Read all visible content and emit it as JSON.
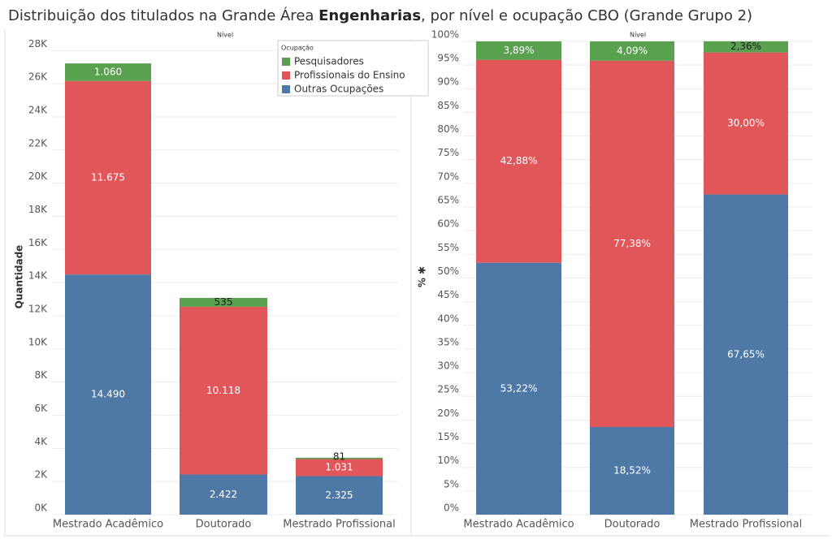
{
  "title": {
    "before": "Distribuição dos titulados na Grande Área ",
    "bold": "Engenharias",
    "after": ", por nível e ocupação CBO (Grande Grupo 2)"
  },
  "chart_data": [
    {
      "type": "bar",
      "stacked": true,
      "header": "Nível",
      "ylabel": "Quantidade",
      "categories": [
        "Mestrado Acadêmico",
        "Doutorado",
        "Mestrado Profissional"
      ],
      "series": [
        {
          "name": "Outras Ocupações",
          "color": "#4e79a7",
          "values": [
            14490,
            2422,
            2325
          ],
          "value_labels": [
            "14.490",
            "2.422",
            "2.325"
          ]
        },
        {
          "name": "Profissionais do Ensino",
          "color": "#e15759",
          "values": [
            11675,
            10118,
            1031
          ],
          "value_labels": [
            "11.675",
            "10.118",
            "1.031"
          ]
        },
        {
          "name": "Pesquisadores",
          "color": "#59a14f",
          "values": [
            1060,
            535,
            81
          ],
          "value_labels": [
            "1.060",
            "535",
            "81"
          ]
        }
      ],
      "ylim": [
        0,
        28700
      ],
      "yticks": [
        {
          "value": 0,
          "label": "0K"
        },
        {
          "value": 2000,
          "label": "2K"
        },
        {
          "value": 4000,
          "label": "4K"
        },
        {
          "value": 6000,
          "label": "6K"
        },
        {
          "value": 8000,
          "label": "8K"
        },
        {
          "value": 10000,
          "label": "10K"
        },
        {
          "value": 12000,
          "label": "12K"
        },
        {
          "value": 14000,
          "label": "14K"
        },
        {
          "value": 16000,
          "label": "16K"
        },
        {
          "value": 18000,
          "label": "18K"
        },
        {
          "value": 20000,
          "label": "20K"
        },
        {
          "value": 22000,
          "label": "22K"
        },
        {
          "value": 24000,
          "label": "24K"
        },
        {
          "value": 26000,
          "label": "26K"
        },
        {
          "value": 28000,
          "label": "28K"
        }
      ],
      "grid": true,
      "legend": "top-right",
      "legend_title": "Ocupação"
    },
    {
      "type": "bar",
      "stacked": true,
      "header": "Nível",
      "ylabel": "% ✱",
      "categories": [
        "Mestrado Acadêmico",
        "Doutorado",
        "Mestrado Profissional"
      ],
      "series": [
        {
          "color": "#4e79a7",
          "values": [
            53.22,
            18.52,
            67.65
          ],
          "value_labels": [
            "53,22%",
            "18,52%",
            "67,65%"
          ]
        },
        {
          "color": "#e15759",
          "values": [
            42.88,
            77.38,
            30.0
          ],
          "value_labels": [
            "42,88%",
            "77,38%",
            "30,00%"
          ]
        },
        {
          "color": "#59a14f",
          "values": [
            3.89,
            4.09,
            2.36
          ],
          "value_labels": [
            "3,89%",
            "4,09%",
            "2,36%"
          ]
        }
      ],
      "ylim": [
        0,
        100.5
      ],
      "yticks": [
        {
          "value": 0,
          "label": "0%"
        },
        {
          "value": 5,
          "label": "5%"
        },
        {
          "value": 10,
          "label": "10%"
        },
        {
          "value": 15,
          "label": "15%"
        },
        {
          "value": 20,
          "label": "20%"
        },
        {
          "value": 25,
          "label": "25%"
        },
        {
          "value": 30,
          "label": "30%"
        },
        {
          "value": 35,
          "label": "35%"
        },
        {
          "value": 40,
          "label": "40%"
        },
        {
          "value": 45,
          "label": "45%"
        },
        {
          "value": 50,
          "label": "50%"
        },
        {
          "value": 55,
          "label": "55%"
        },
        {
          "value": 60,
          "label": "60%"
        },
        {
          "value": 65,
          "label": "65%"
        },
        {
          "value": 70,
          "label": "70%"
        },
        {
          "value": 75,
          "label": "75%"
        },
        {
          "value": 80,
          "label": "80%"
        },
        {
          "value": 85,
          "label": "85%"
        },
        {
          "value": 90,
          "label": "90%"
        },
        {
          "value": 95,
          "label": "95%"
        },
        {
          "value": 100,
          "label": "100%"
        }
      ],
      "grid": true
    }
  ]
}
